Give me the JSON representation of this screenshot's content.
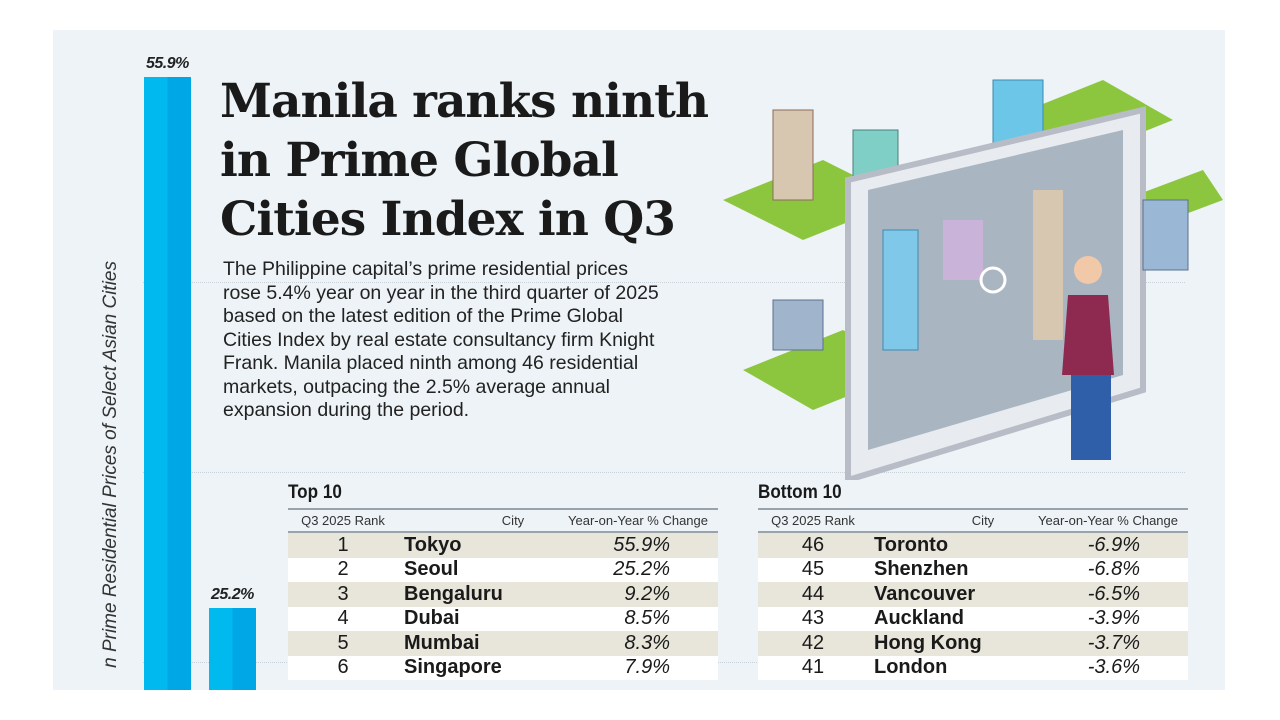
{
  "headline": "Manila ranks ninth in Prime Global Cities Index in Q3",
  "body": "The Philippine capital’s prime residential prices rose 5.4% year on year in the third quarter of 2025 based on the latest edition of the Prime Global Cities Index by real estate consultancy firm Knight Frank. Manila placed ninth among 46 residential markets, outpacing the 2.5% average annual expansion during the period.",
  "chart_data": {
    "type": "bar",
    "ylabel": "n Prime Residential Prices of Select Asian Cities",
    "categories": [
      "",
      ""
    ],
    "values": [
      55.9,
      25.2
    ],
    "value_labels": [
      "55.9%",
      "25.2%"
    ],
    "ylim": [
      0,
      60
    ],
    "grid": true,
    "bar_color": "#00b4ec"
  },
  "top10": {
    "title": "Top 10",
    "headers": [
      "Q3 2025 Rank",
      "City",
      "Year-on-Year % Change"
    ],
    "rows": [
      {
        "rank": "1",
        "city": "Tokyo",
        "change": "55.9%"
      },
      {
        "rank": "2",
        "city": "Seoul",
        "change": "25.2%"
      },
      {
        "rank": "3",
        "city": "Bengaluru",
        "change": "9.2%"
      },
      {
        "rank": "4",
        "city": "Dubai",
        "change": "8.5%"
      },
      {
        "rank": "5",
        "city": "Mumbai",
        "change": "8.3%"
      },
      {
        "rank": "6",
        "city": "Singapore",
        "change": "7.9%"
      }
    ]
  },
  "bottom10": {
    "title": "Bottom 10",
    "headers": [
      "Q3 2025 Rank",
      "City",
      "Year-on-Year % Change"
    ],
    "rows": [
      {
        "rank": "46",
        "city": "Toronto",
        "change": "-6.9%"
      },
      {
        "rank": "45",
        "city": "Shenzhen",
        "change": "-6.8%"
      },
      {
        "rank": "44",
        "city": "Vancouver",
        "change": "-6.5%"
      },
      {
        "rank": "43",
        "city": "Auckland",
        "change": "-3.9%"
      },
      {
        "rank": "42",
        "city": "Hong Kong",
        "change": "-3.7%"
      },
      {
        "rank": "41",
        "city": "London",
        "change": "-3.6%"
      }
    ]
  }
}
